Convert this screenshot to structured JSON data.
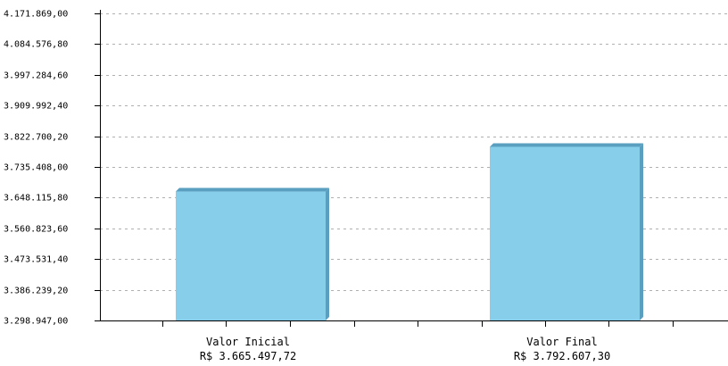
{
  "chart_data": {
    "type": "bar",
    "categories": [
      {
        "name": "Valor Inicial",
        "sublabel": "R$ 3.665.497,72"
      },
      {
        "name": "Valor Final",
        "sublabel": "R$ 3.792.607,30"
      }
    ],
    "values": [
      3665497.72,
      3792607.3
    ],
    "title": "",
    "xlabel": "",
    "ylabel": "",
    "ylim": [
      3298947.0,
      4171869.0
    ],
    "yticks": [
      "4.171.869,00",
      "4.084.576,80",
      "3.997.284,60",
      "3.909.992,40",
      "3.822.700,20",
      "3.735.408,00",
      "3.648.115,80",
      "3.560.823,60",
      "3.473.531,40",
      "3.386.239,20",
      "3.298.947,00"
    ],
    "grid": true,
    "bar_color": "#87CEEB",
    "bar_shadow_color": "#5A9FBF",
    "axis_color": "#000000",
    "grid_color": "#B0B0B0"
  }
}
